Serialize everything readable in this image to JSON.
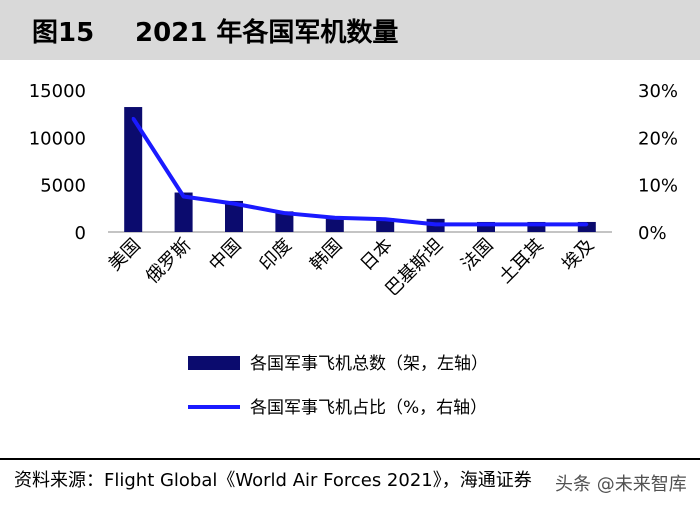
{
  "header": {
    "figure_label": "图15",
    "title": "2021 年各国军机数量"
  },
  "source_text": "资料来源：Flight Global《World Air Forces 2021》，海通证券",
  "watermark": "头条 @未来智库",
  "colors": {
    "bar": "#0b0b6e",
    "line": "#1a1aff",
    "header_bg": "#d9d9d9"
  },
  "chart_data": {
    "type": "bar",
    "categories": [
      "美国",
      "俄罗斯",
      "中国",
      "印度",
      "韩国",
      "日本",
      "巴基斯坦",
      "法国",
      "土耳其",
      "埃及"
    ],
    "series": [
      {
        "name": "各国军事飞机总数（架，左轴）",
        "type": "bar",
        "axis": "left",
        "values": [
          13200,
          4170,
          3280,
          2180,
          1600,
          1450,
          1390,
          1060,
          1060,
          1060
        ]
      },
      {
        "name": "各国军事飞机占比（%，右轴）",
        "type": "line",
        "axis": "right",
        "values": [
          24,
          7.5,
          6,
          4,
          3,
          2.7,
          1.6,
          1.6,
          1.6,
          1.6
        ]
      }
    ],
    "left_axis": {
      "ticks": [
        "0",
        "5000",
        "10000",
        "15000"
      ],
      "ylim": [
        0,
        15000
      ]
    },
    "right_axis": {
      "ticks": [
        "0%",
        "10%",
        "20%",
        "30%"
      ],
      "ylim": [
        0,
        30
      ]
    },
    "legend_position": "bottom",
    "grid": false
  }
}
